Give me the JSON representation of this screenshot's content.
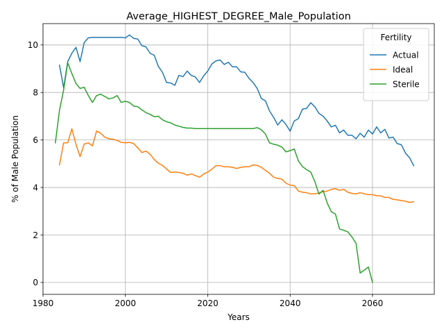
{
  "chart_data": {
    "type": "line",
    "title": "Average_HIGHEST_DEGREE_Male_Population",
    "xlabel": "Years",
    "ylabel": "% of Male Population",
    "xlim": [
      1980,
      2075
    ],
    "ylim": [
      -0.5,
      10.9
    ],
    "xticks": [
      1980,
      2000,
      2020,
      2040,
      2060
    ],
    "yticks": [
      0,
      2,
      4,
      6,
      8,
      10
    ],
    "grid": true,
    "legend": {
      "title": "Fertility",
      "position": "top-right"
    },
    "series": [
      {
        "name": "Actual",
        "color": "#1f77b4",
        "points": [
          [
            1984,
            9.15
          ],
          [
            1985,
            8.2
          ],
          [
            1986,
            9.3
          ],
          [
            1987,
            9.65
          ],
          [
            1988,
            9.9
          ],
          [
            1989,
            9.3
          ],
          [
            1990,
            10.1
          ],
          [
            1991,
            10.3
          ],
          [
            1992,
            10.32
          ],
          [
            1995,
            10.32
          ],
          [
            1999,
            10.32
          ],
          [
            2000,
            10.3
          ],
          [
            2001,
            10.42
          ],
          [
            2002,
            10.28
          ],
          [
            2003,
            10.25
          ],
          [
            2004,
            9.97
          ],
          [
            2005,
            9.92
          ],
          [
            2006,
            9.65
          ],
          [
            2007,
            9.57
          ],
          [
            2008,
            9.1
          ],
          [
            2009,
            8.85
          ],
          [
            2010,
            8.42
          ],
          [
            2011,
            8.4
          ],
          [
            2012,
            8.3
          ],
          [
            2013,
            8.72
          ],
          [
            2014,
            8.67
          ],
          [
            2015,
            8.9
          ],
          [
            2016,
            8.72
          ],
          [
            2017,
            8.65
          ],
          [
            2018,
            8.42
          ],
          [
            2019,
            8.7
          ],
          [
            2020,
            8.9
          ],
          [
            2021,
            9.2
          ],
          [
            2022,
            9.33
          ],
          [
            2023,
            9.37
          ],
          [
            2024,
            9.18
          ],
          [
            2025,
            9.27
          ],
          [
            2026,
            9.08
          ],
          [
            2027,
            9.08
          ],
          [
            2028,
            8.87
          ],
          [
            2029,
            8.85
          ],
          [
            2030,
            8.6
          ],
          [
            2031,
            8.42
          ],
          [
            2032,
            8.17
          ],
          [
            2033,
            7.75
          ],
          [
            2034,
            7.65
          ],
          [
            2035,
            7.22
          ],
          [
            2036,
            6.95
          ],
          [
            2037,
            6.63
          ],
          [
            2038,
            6.85
          ],
          [
            2039,
            6.65
          ],
          [
            2040,
            6.37
          ],
          [
            2041,
            6.8
          ],
          [
            2042,
            6.9
          ],
          [
            2043,
            7.3
          ],
          [
            2044,
            7.33
          ],
          [
            2045,
            7.57
          ],
          [
            2046,
            7.4
          ],
          [
            2047,
            7.12
          ],
          [
            2048,
            7.0
          ],
          [
            2049,
            6.8
          ],
          [
            2050,
            6.55
          ],
          [
            2051,
            6.62
          ],
          [
            2052,
            6.3
          ],
          [
            2053,
            6.42
          ],
          [
            2054,
            6.2
          ],
          [
            2055,
            6.2
          ],
          [
            2056,
            6.05
          ],
          [
            2057,
            6.28
          ],
          [
            2058,
            6.12
          ],
          [
            2059,
            6.42
          ],
          [
            2060,
            6.25
          ],
          [
            2061,
            6.55
          ],
          [
            2062,
            6.3
          ],
          [
            2063,
            6.45
          ],
          [
            2064,
            6.08
          ],
          [
            2065,
            6.12
          ],
          [
            2066,
            5.85
          ],
          [
            2067,
            5.8
          ],
          [
            2068,
            5.45
          ],
          [
            2069,
            5.25
          ],
          [
            2070,
            4.92
          ]
        ]
      },
      {
        "name": "Ideal",
        "color": "#ff7f0e",
        "points": [
          [
            1984,
            4.95
          ],
          [
            1985,
            5.88
          ],
          [
            1986,
            5.88
          ],
          [
            1987,
            6.47
          ],
          [
            1988,
            5.82
          ],
          [
            1989,
            5.3
          ],
          [
            1990,
            5.83
          ],
          [
            1991,
            5.88
          ],
          [
            1992,
            5.75
          ],
          [
            1993,
            6.38
          ],
          [
            1994,
            6.28
          ],
          [
            1995,
            6.12
          ],
          [
            1996,
            6.05
          ],
          [
            1997,
            6.03
          ],
          [
            1998,
            5.98
          ],
          [
            1999,
            5.9
          ],
          [
            2000,
            5.88
          ],
          [
            2001,
            5.9
          ],
          [
            2002,
            5.85
          ],
          [
            2003,
            5.67
          ],
          [
            2004,
            5.47
          ],
          [
            2005,
            5.53
          ],
          [
            2006,
            5.4
          ],
          [
            2007,
            5.18
          ],
          [
            2008,
            5.02
          ],
          [
            2009,
            4.93
          ],
          [
            2010,
            4.78
          ],
          [
            2011,
            4.63
          ],
          [
            2012,
            4.65
          ],
          [
            2013,
            4.63
          ],
          [
            2014,
            4.6
          ],
          [
            2015,
            4.52
          ],
          [
            2016,
            4.57
          ],
          [
            2017,
            4.5
          ],
          [
            2018,
            4.43
          ],
          [
            2019,
            4.57
          ],
          [
            2020,
            4.65
          ],
          [
            2021,
            4.77
          ],
          [
            2022,
            4.92
          ],
          [
            2023,
            4.92
          ],
          [
            2024,
            4.87
          ],
          [
            2025,
            4.87
          ],
          [
            2026,
            4.85
          ],
          [
            2027,
            4.8
          ],
          [
            2028,
            4.85
          ],
          [
            2029,
            4.87
          ],
          [
            2030,
            4.87
          ],
          [
            2031,
            4.95
          ],
          [
            2032,
            4.93
          ],
          [
            2033,
            4.85
          ],
          [
            2034,
            4.72
          ],
          [
            2035,
            4.6
          ],
          [
            2036,
            4.43
          ],
          [
            2037,
            4.38
          ],
          [
            2038,
            4.35
          ],
          [
            2039,
            4.18
          ],
          [
            2040,
            4.1
          ],
          [
            2041,
            4.08
          ],
          [
            2042,
            3.85
          ],
          [
            2043,
            3.8
          ],
          [
            2044,
            3.78
          ],
          [
            2045,
            3.73
          ],
          [
            2046,
            3.73
          ],
          [
            2047,
            3.77
          ],
          [
            2048,
            3.82
          ],
          [
            2049,
            3.85
          ],
          [
            2050,
            3.92
          ],
          [
            2051,
            3.95
          ],
          [
            2052,
            3.88
          ],
          [
            2053,
            3.92
          ],
          [
            2054,
            3.8
          ],
          [
            2055,
            3.75
          ],
          [
            2056,
            3.73
          ],
          [
            2057,
            3.78
          ],
          [
            2058,
            3.73
          ],
          [
            2059,
            3.7
          ],
          [
            2060,
            3.7
          ],
          [
            2061,
            3.65
          ],
          [
            2062,
            3.65
          ],
          [
            2063,
            3.58
          ],
          [
            2064,
            3.58
          ],
          [
            2065,
            3.5
          ],
          [
            2066,
            3.48
          ],
          [
            2067,
            3.45
          ],
          [
            2068,
            3.42
          ],
          [
            2069,
            3.37
          ],
          [
            2070,
            3.4
          ]
        ]
      },
      {
        "name": "Sterile",
        "color": "#2ca02c",
        "points": [
          [
            1983,
            5.88
          ],
          [
            1984,
            7.25
          ],
          [
            1985,
            8.1
          ],
          [
            1986,
            9.25
          ],
          [
            1987,
            8.8
          ],
          [
            1988,
            8.38
          ],
          [
            1989,
            8.17
          ],
          [
            1990,
            8.22
          ],
          [
            1991,
            7.87
          ],
          [
            1992,
            7.58
          ],
          [
            1993,
            7.87
          ],
          [
            1994,
            7.93
          ],
          [
            1995,
            7.83
          ],
          [
            1996,
            7.73
          ],
          [
            1997,
            7.77
          ],
          [
            1998,
            7.87
          ],
          [
            1999,
            7.58
          ],
          [
            2000,
            7.63
          ],
          [
            2001,
            7.58
          ],
          [
            2002,
            7.43
          ],
          [
            2003,
            7.4
          ],
          [
            2004,
            7.27
          ],
          [
            2005,
            7.15
          ],
          [
            2006,
            7.08
          ],
          [
            2007,
            6.98
          ],
          [
            2008,
            7.0
          ],
          [
            2009,
            6.85
          ],
          [
            2010,
            6.77
          ],
          [
            2011,
            6.72
          ],
          [
            2012,
            6.63
          ],
          [
            2013,
            6.58
          ],
          [
            2014,
            6.53
          ],
          [
            2015,
            6.5
          ],
          [
            2016,
            6.5
          ],
          [
            2017,
            6.48
          ],
          [
            2018,
            6.48
          ],
          [
            2020,
            6.48
          ],
          [
            2025,
            6.48
          ],
          [
            2030,
            6.48
          ],
          [
            2031,
            6.48
          ],
          [
            2032,
            6.52
          ],
          [
            2033,
            6.43
          ],
          [
            2034,
            6.25
          ],
          [
            2035,
            5.88
          ],
          [
            2036,
            5.82
          ],
          [
            2037,
            5.78
          ],
          [
            2038,
            5.7
          ],
          [
            2039,
            5.5
          ],
          [
            2040,
            5.55
          ],
          [
            2041,
            5.62
          ],
          [
            2042,
            5.12
          ],
          [
            2043,
            4.88
          ],
          [
            2044,
            4.75
          ],
          [
            2045,
            4.65
          ],
          [
            2046,
            4.25
          ],
          [
            2047,
            3.72
          ],
          [
            2048,
            3.88
          ],
          [
            2049,
            3.35
          ],
          [
            2050,
            2.98
          ],
          [
            2051,
            2.88
          ],
          [
            2052,
            2.25
          ],
          [
            2053,
            2.2
          ],
          [
            2054,
            2.13
          ],
          [
            2055,
            1.92
          ],
          [
            2056,
            1.65
          ],
          [
            2057,
            0.4
          ],
          [
            2058,
            0.52
          ],
          [
            2059,
            0.65
          ],
          [
            2060,
            0.0
          ]
        ]
      }
    ]
  }
}
